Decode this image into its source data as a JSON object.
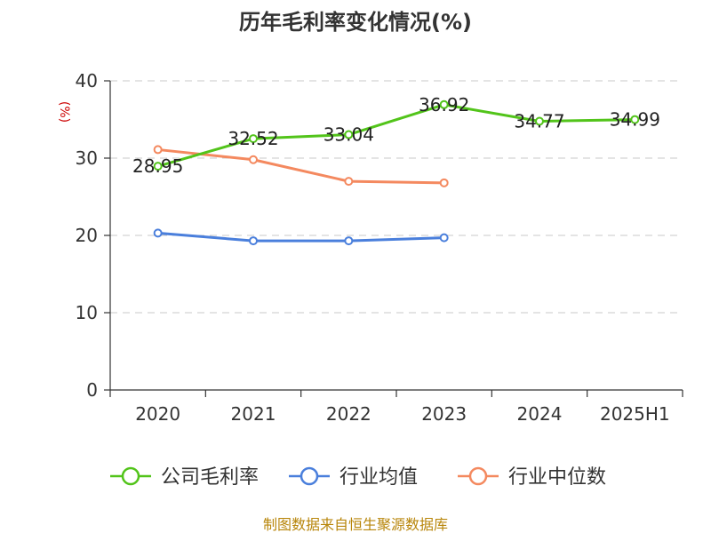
{
  "chart_data": {
    "type": "line",
    "title": "历年毛利率变化情况(%)",
    "ylabel": "(%)",
    "xlabel": "",
    "categories": [
      "2020",
      "2021",
      "2022",
      "2023",
      "2024",
      "2025H1"
    ],
    "ylim": [
      0,
      40
    ],
    "yticks": [
      0,
      10,
      20,
      30,
      40
    ],
    "grid": true,
    "legend_position": "bottom",
    "series": [
      {
        "name": "公司毛利率",
        "color": "#52c41a",
        "values": [
          28.95,
          32.52,
          33.04,
          36.92,
          34.77,
          34.99
        ],
        "labels": [
          "28.95",
          "32.52",
          "33.04",
          "36.92",
          "34.77",
          "34.99"
        ]
      },
      {
        "name": "行业均值",
        "color": "#4a7fdc",
        "values": [
          20.3,
          19.3,
          19.3,
          19.7,
          null,
          null
        ]
      },
      {
        "name": "行业中位数",
        "color": "#f4895f",
        "values": [
          31.1,
          29.8,
          27.0,
          26.8,
          null,
          null
        ]
      }
    ]
  },
  "source": "制图数据来自恒生聚源数据库"
}
